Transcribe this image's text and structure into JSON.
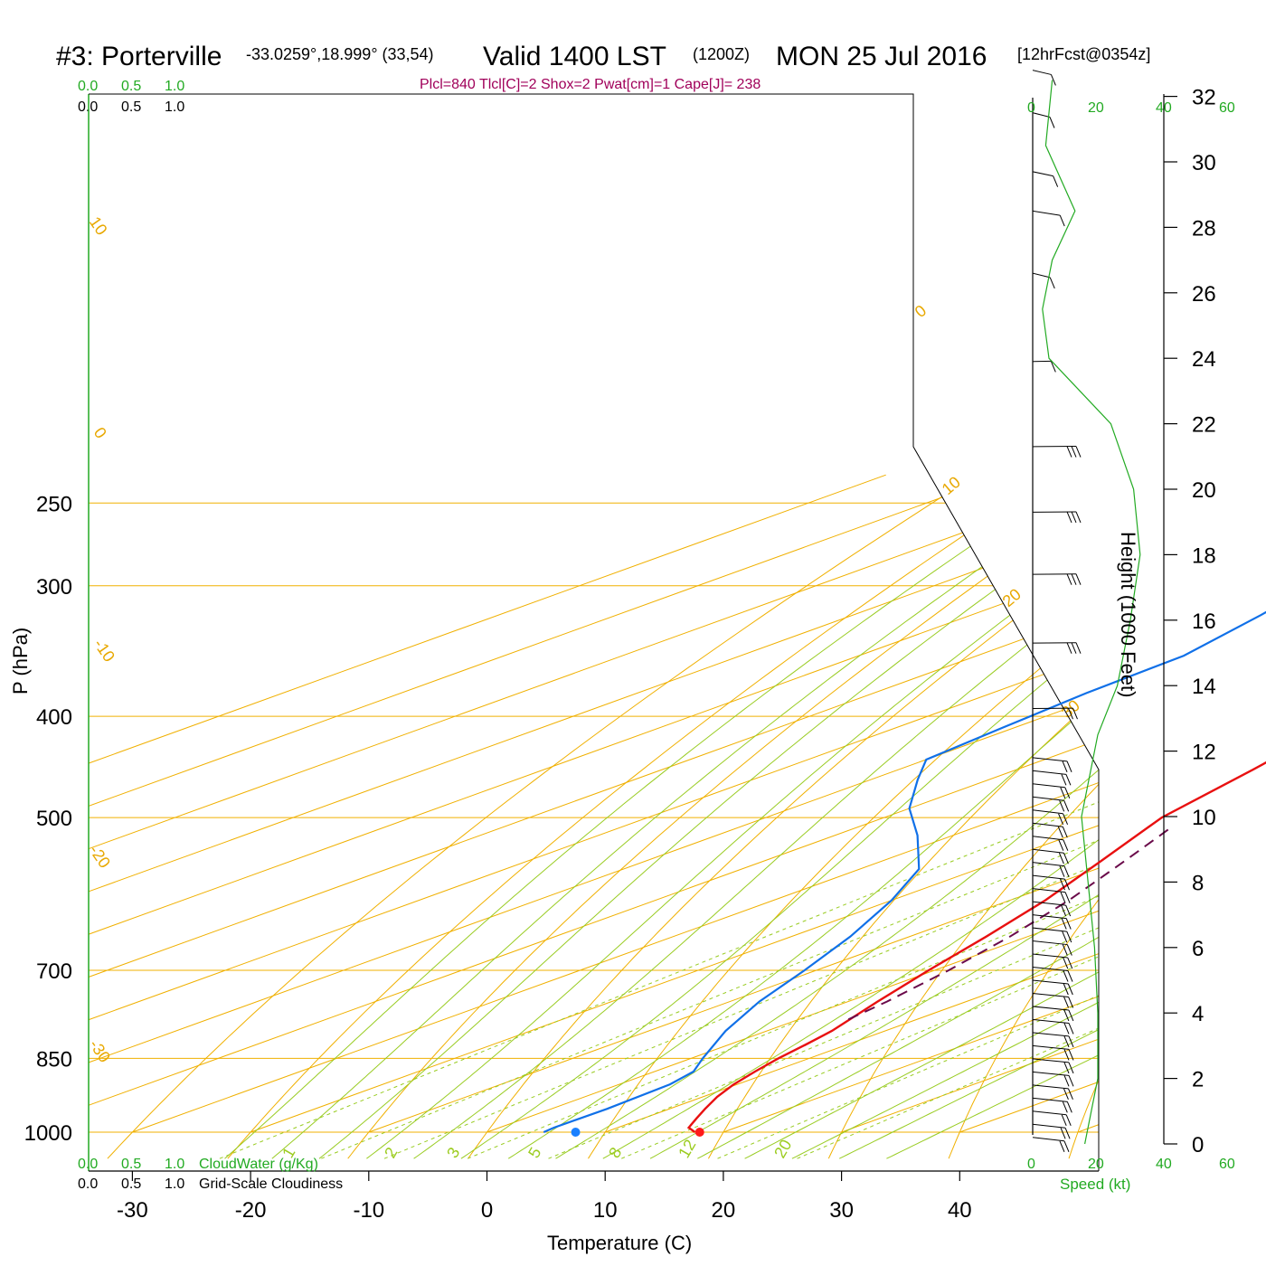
{
  "header": {
    "station": "#3: Porterville",
    "coords": "-33.0259°,18.999° (33,54)",
    "valid": "Valid 1400 LST",
    "utc": "(1200Z)",
    "date": "MON 25 Jul 2016",
    "forecast": "[12hrFcst@0354z]"
  },
  "indices_line": "Plcl=840 Tlcl[C]=2 Shox=2 Pwat[cm]=1 Cape[J]= 238",
  "scales": {
    "top_green": [
      "0.0",
      "0.5",
      "1.0"
    ],
    "top_black": [
      "0.0",
      "0.5",
      "1.0"
    ],
    "bottom_green": [
      "0.0",
      "0.5",
      "1.0"
    ],
    "bottom_black": [
      "0.0",
      "0.5",
      "1.0"
    ],
    "cloudwater_label": "CloudWater (g/Kg)",
    "cloudiness_label": "Grid-Scale Cloudiness"
  },
  "speed_axis": {
    "ticks_top": [
      "0",
      "20",
      "40",
      "60"
    ],
    "ticks_bottom": [
      "0",
      "20",
      "40",
      "60"
    ],
    "label": "Speed (kt)"
  },
  "colors": {
    "isotherm": "#f0b000",
    "dry_adiabat": "#f0b000",
    "moist_adiabat": "#99cc22",
    "mixing_ratio": "#99cc22",
    "temperature": "#e81010",
    "dewpoint": "#1070e8",
    "parcel": "#6a0a4a",
    "speed_profile": "#22aa22",
    "index_text": "#a0005a"
  },
  "chart_data": {
    "type": "skew-t",
    "title": "#3: Porterville",
    "xlabel": "Temperature (C)",
    "ylabel": "P (hPa)",
    "y2label": "Height (1000 Feet)",
    "pressure_ticks": [
      250,
      300,
      400,
      500,
      700,
      850,
      1000
    ],
    "pressure_range": [
      250,
      1000
    ],
    "temperature_ticks": [
      -30,
      -20,
      -10,
      0,
      10,
      20,
      30,
      40
    ],
    "height_ticks_kft": [
      0,
      2,
      4,
      6,
      8,
      10,
      12,
      14,
      16,
      18,
      20,
      22,
      24,
      26,
      28,
      30,
      32
    ],
    "isotherm_labels": [
      "10",
      "0",
      "-10",
      "-20",
      "-30"
    ],
    "dry_adiabat_labels": [
      "0",
      "10",
      "20",
      "30"
    ],
    "mixing_ratio_labels": [
      "1",
      "2",
      "3",
      "5",
      "8",
      "12",
      "20"
    ],
    "temperature_profile": [
      {
        "p": 1000,
        "t": 17.6
      },
      {
        "p": 990,
        "t": 16.0
      },
      {
        "p": 970,
        "t": 14.5
      },
      {
        "p": 950,
        "t": 13.0
      },
      {
        "p": 925,
        "t": 11.2
      },
      {
        "p": 900,
        "t": 9.7
      },
      {
        "p": 875,
        "t": 8.5
      },
      {
        "p": 850,
        "t": 7.4
      },
      {
        "p": 825,
        "t": 6.5
      },
      {
        "p": 800,
        "t": 5.5
      },
      {
        "p": 750,
        "t": 2.5
      },
      {
        "p": 700,
        "t": -0.5
      },
      {
        "p": 650,
        "t": -3.5
      },
      {
        "p": 600,
        "t": -7.0
      },
      {
        "p": 550,
        "t": -11.5
      },
      {
        "p": 500,
        "t": -16.5
      },
      {
        "p": 450,
        "t": -20.0
      },
      {
        "p": 425,
        "t": -22.0
      },
      {
        "p": 400,
        "t": -26.0
      },
      {
        "p": 370,
        "t": -31.5
      },
      {
        "p": 340,
        "t": -37.0
      },
      {
        "p": 320,
        "t": -40.5
      },
      {
        "p": 300,
        "t": -43.0
      },
      {
        "p": 280,
        "t": -47.0
      },
      {
        "p": 263,
        "t": -48.5
      }
    ],
    "dewpoint_profile": [
      {
        "p": 1000,
        "t": 4.8
      },
      {
        "p": 990,
        "t": 4.6
      },
      {
        "p": 950,
        "t": 4.7
      },
      {
        "p": 900,
        "t": 4.3
      },
      {
        "p": 875,
        "t": 3.3
      },
      {
        "p": 850,
        "t": 1.0
      },
      {
        "p": 800,
        "t": -3.5
      },
      {
        "p": 750,
        "t": -7.5
      },
      {
        "p": 700,
        "t": -11.0
      },
      {
        "p": 650,
        "t": -15.0
      },
      {
        "p": 600,
        "t": -20.0
      },
      {
        "p": 560,
        "t": -25.0
      },
      {
        "p": 520,
        "t": -33.0
      },
      {
        "p": 490,
        "t": -40.0
      },
      {
        "p": 460,
        "t": -46.0
      },
      {
        "p": 440,
        "t": -50.0
      },
      {
        "p": 410,
        "t": -51.0
      },
      {
        "p": 380,
        "t": -52.0
      },
      {
        "p": 350,
        "t": -52.5
      },
      {
        "p": 320,
        "t": -55.5
      },
      {
        "p": 300,
        "t": -58.0
      },
      {
        "p": 280,
        "t": -60.0
      },
      {
        "p": 263,
        "t": -61.5
      }
    ],
    "parcel_profile": [
      {
        "p": 780,
        "t": 4.2
      },
      {
        "p": 750,
        "t": 3.3
      },
      {
        "p": 700,
        "t": 1.2
      },
      {
        "p": 650,
        "t": -1.5
      },
      {
        "p": 600,
        "t": -5.0
      },
      {
        "p": 550,
        "t": -9.5
      },
      {
        "p": 510,
        "t": -13.5
      }
    ],
    "surface_temperature": 18.0,
    "surface_dewpoint": 7.5,
    "wind_speed_profile_kt": [
      {
        "h": 0.0,
        "s": 16
      },
      {
        "h": 0.5,
        "s": 17
      },
      {
        "h": 1.0,
        "s": 18
      },
      {
        "h": 2.0,
        "s": 20
      },
      {
        "h": 4.0,
        "s": 20
      },
      {
        "h": 6.0,
        "s": 19
      },
      {
        "h": 8.0,
        "s": 17
      },
      {
        "h": 10.0,
        "s": 15
      },
      {
        "h": 12.5,
        "s": 20
      },
      {
        "h": 14.0,
        "s": 26
      },
      {
        "h": 16.0,
        "s": 30
      },
      {
        "h": 18.0,
        "s": 33
      },
      {
        "h": 20.0,
        "s": 31
      },
      {
        "h": 22.0,
        "s": 24
      },
      {
        "h": 24.0,
        "s": 5
      },
      {
        "h": 25.5,
        "s": 3
      },
      {
        "h": 27.0,
        "s": 6
      },
      {
        "h": 28.5,
        "s": 13
      },
      {
        "h": 30.5,
        "s": 4
      },
      {
        "h": 32.5,
        "s": 6
      }
    ],
    "grid": true
  }
}
